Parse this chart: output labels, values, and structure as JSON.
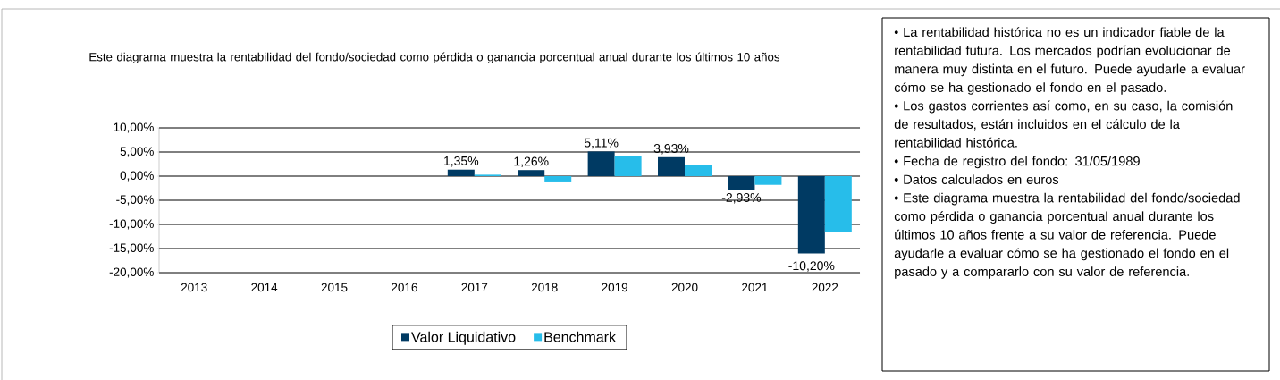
{
  "chart_data": {
    "type": "bar",
    "title": "Este diagrama  muestra la rentabilidad  del fondo/sociedad como pérdida  o ganancia porcentual anual durante los últimos  10  años",
    "categories": [
      "2013",
      "2014",
      "2015",
      "2016",
      "2017",
      "2018",
      "2019",
      "2020",
      "2021",
      "2022"
    ],
    "series": [
      {
        "name": "Valor Liquidativo",
        "color": "#003a63",
        "values": [
          null,
          null,
          null,
          null,
          1.35,
          1.26,
          5.11,
          3.93,
          -2.93,
          -16.0
        ],
        "value_labels": [
          null,
          null,
          null,
          null,
          "1,35%",
          "1,26%",
          "5,11%",
          "3,93%",
          "-2,93%",
          null
        ]
      },
      {
        "name": "Benchmark",
        "color": "#27bdea",
        "values": [
          null,
          null,
          null,
          null,
          0.3,
          -1.1,
          4.1,
          2.3,
          -1.8,
          -11.6
        ]
      }
    ],
    "ylim": [
      -20,
      10
    ],
    "yticks": [
      {
        "value": -20,
        "label": "-20,00%"
      },
      {
        "value": -15,
        "label": "-15,00%"
      },
      {
        "value": -10,
        "label": "-10,00%"
      },
      {
        "value": -5,
        "label": "-5,00%"
      },
      {
        "value": 0,
        "label": "0,00%"
      },
      {
        "value": 5,
        "label": "5,00%"
      },
      {
        "value": 10,
        "label": "10,00%"
      }
    ],
    "grid": "y",
    "legend": "bottom",
    "annotations": [
      "-10,20%",
      "• La rentabilidad  histórica no es un indicador fiable de la rentabilidad  futura. Los mercados podrían evolucionar de manera muy distinta en el futuro. Puede ayudarle a evaluar cómo se ha gestionado el fondo en el pasado.",
      "• Los gastos corrientes así como, en su caso, la comisión de resultados, están incluidos en el cálculo de la rentabilidad  histórica.",
      "• Fecha de registro del fondo: 31/05/1989",
      "• Datos calculados en euros",
      "• Este diagrama  muestra la rentabilidad  del fondo/sociedad como pérdida  o ganancia porcentual anual durante los últimos 10 años frente a su valor de referencia. Puede ayudarle a evaluar cómo se ha gestionado el fondo en el pasado y a compararlo con su valor de referencia."
    ]
  }
}
